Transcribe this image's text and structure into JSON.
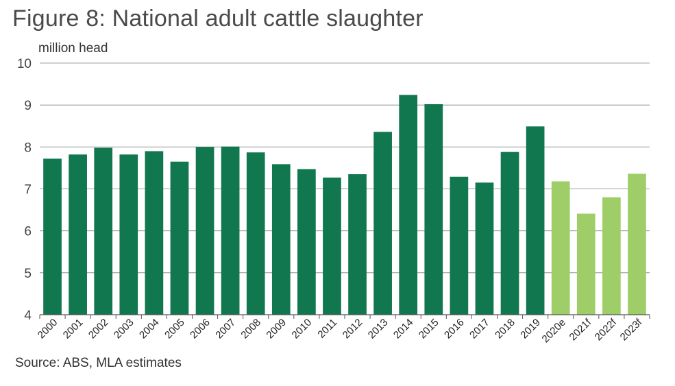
{
  "title": "Figure 8: National adult cattle slaughter",
  "source": "Source: ABS, MLA estimates",
  "colors": {
    "actual": "#11774f",
    "forecast": "#9fce68",
    "grid": "#7f7f7f",
    "axis": "#555555"
  },
  "chart_data": {
    "type": "bar",
    "title": "Figure 8: National adult cattle slaughter",
    "ylabel": "million head",
    "xlabel": "",
    "ylim": [
      4,
      10
    ],
    "yticks": [
      4,
      5,
      6,
      7,
      8,
      9,
      10
    ],
    "grid": true,
    "categories": [
      "2000",
      "2001",
      "2002",
      "2003",
      "2004",
      "2005",
      "2006",
      "2007",
      "2008",
      "2009",
      "2010",
      "2011",
      "2012",
      "2013",
      "2014",
      "2015",
      "2016",
      "2017",
      "2018",
      "2019",
      "2020e",
      "2021f",
      "2022f",
      "2023f"
    ],
    "values": [
      7.72,
      7.82,
      7.98,
      7.82,
      7.9,
      7.65,
      8.0,
      8.01,
      7.87,
      7.59,
      7.47,
      7.27,
      7.35,
      8.36,
      9.24,
      9.02,
      7.29,
      7.15,
      7.88,
      8.49,
      7.18,
      6.41,
      6.8,
      7.36
    ],
    "forecast_from_index": 20
  }
}
